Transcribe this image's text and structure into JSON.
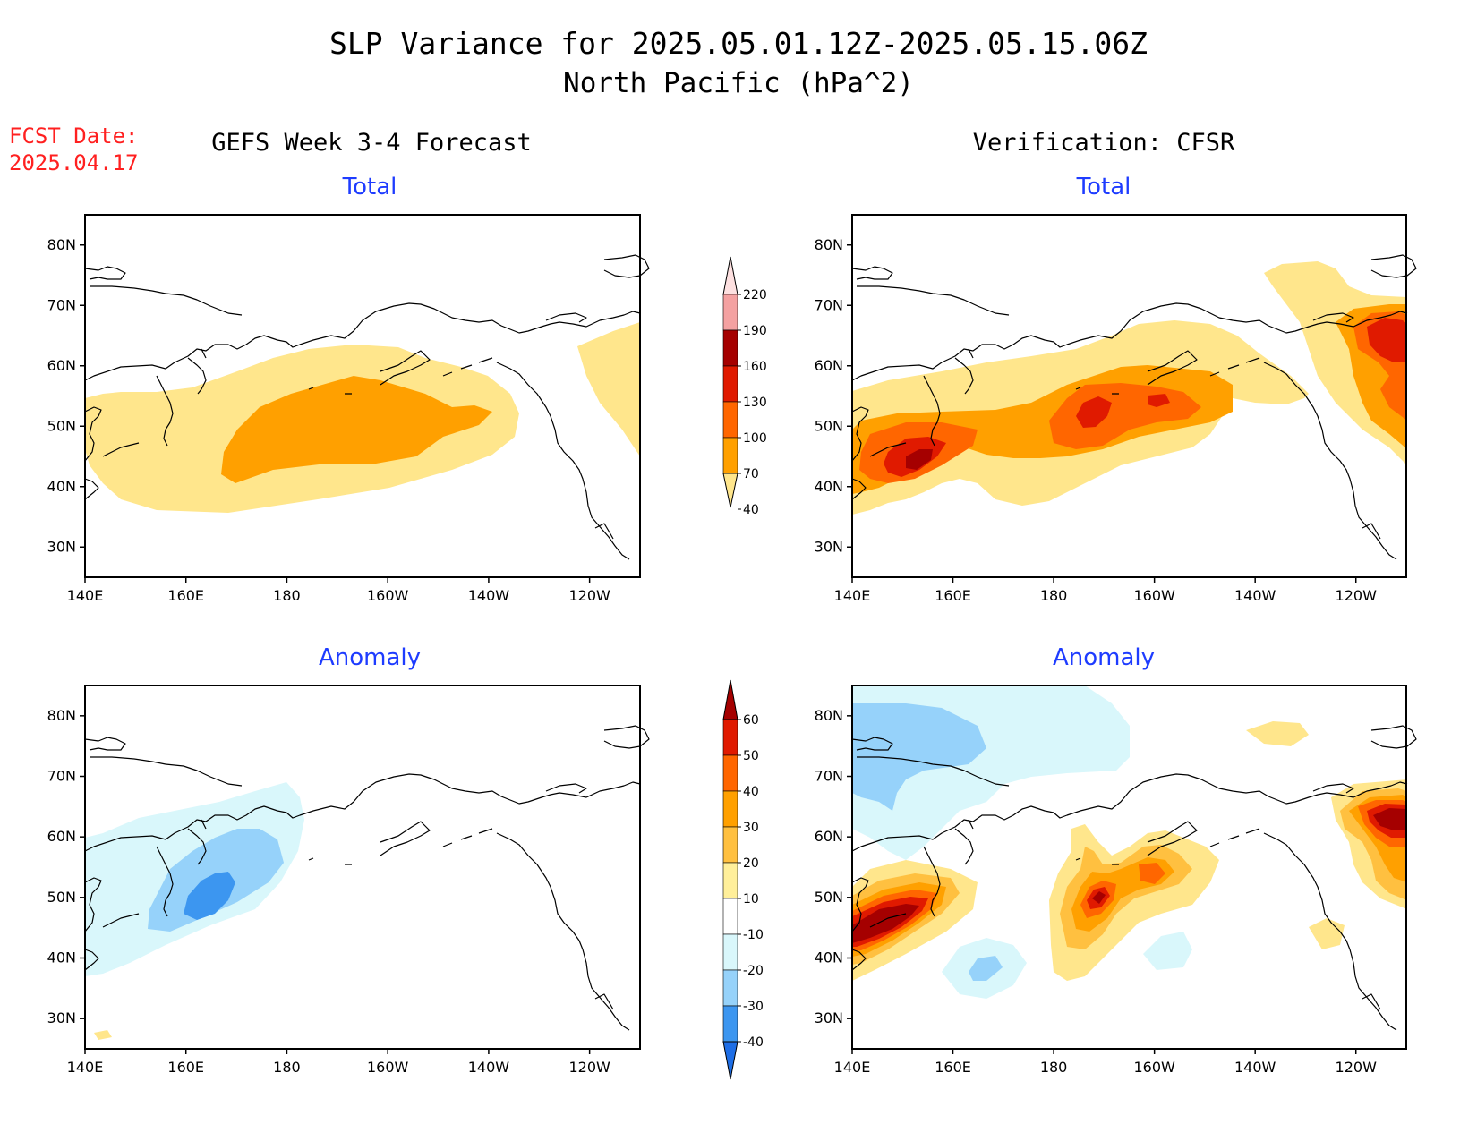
{
  "title": {
    "line1": "SLP Variance for 2025.05.01.12Z-2025.05.15.06Z",
    "line2": "North Pacific (hPa^2)"
  },
  "fcst_date": {
    "label": "FCST Date:",
    "value": "2025.04.17"
  },
  "columns": {
    "left": "GEFS Week 3-4 Forecast",
    "right": "Verification: CFSR"
  },
  "panel_titles": {
    "top_left": "Total",
    "top_right": "Total",
    "bottom_left": "Anomaly",
    "bottom_right": "Anomaly"
  },
  "axes": {
    "lat_labels": [
      "80N",
      "70N",
      "60N",
      "50N",
      "40N",
      "30N"
    ],
    "lon_labels": [
      "140E",
      "160E",
      "180",
      "160W",
      "140W",
      "120W"
    ]
  },
  "colorbars": {
    "total": {
      "labels": [
        "220",
        "190",
        "160",
        "130",
        "100",
        "70",
        "40"
      ],
      "colors": [
        "#fde0e0",
        "#f4a1a1",
        "#a50000",
        "#e01a00",
        "#ff6600",
        "#ffa000",
        "#ffe68c"
      ]
    },
    "anomaly": {
      "labels": [
        "60",
        "50",
        "40",
        "30",
        "20",
        "10",
        "-10",
        "-20",
        "-30",
        "-40"
      ],
      "colors": [
        "#a50000",
        "#e01a00",
        "#ff6600",
        "#ffa000",
        "#ffc040",
        "#ffef9a",
        "#ffffff",
        "#d9f7fb",
        "#96d2fa",
        "#3c96f0",
        "#1e6ee6"
      ]
    }
  },
  "chart_data": {
    "type": "contour map",
    "region": "North Pacific",
    "lon_range": [
      "140E",
      "110W"
    ],
    "lat_range": [
      "25N",
      "85N"
    ],
    "panels": [
      {
        "column": "GEFS Week 3-4 Forecast",
        "field": "Total",
        "max_level": "70-100"
      },
      {
        "column": "Verification: CFSR",
        "field": "Total",
        "max_level": "160-190"
      },
      {
        "column": "GEFS Week 3-4 Forecast",
        "field": "Anomaly",
        "min_level": "-40 to -30"
      },
      {
        "column": "Verification: CFSR",
        "field": "Anomaly",
        "max_level": "50-60"
      }
    ]
  }
}
